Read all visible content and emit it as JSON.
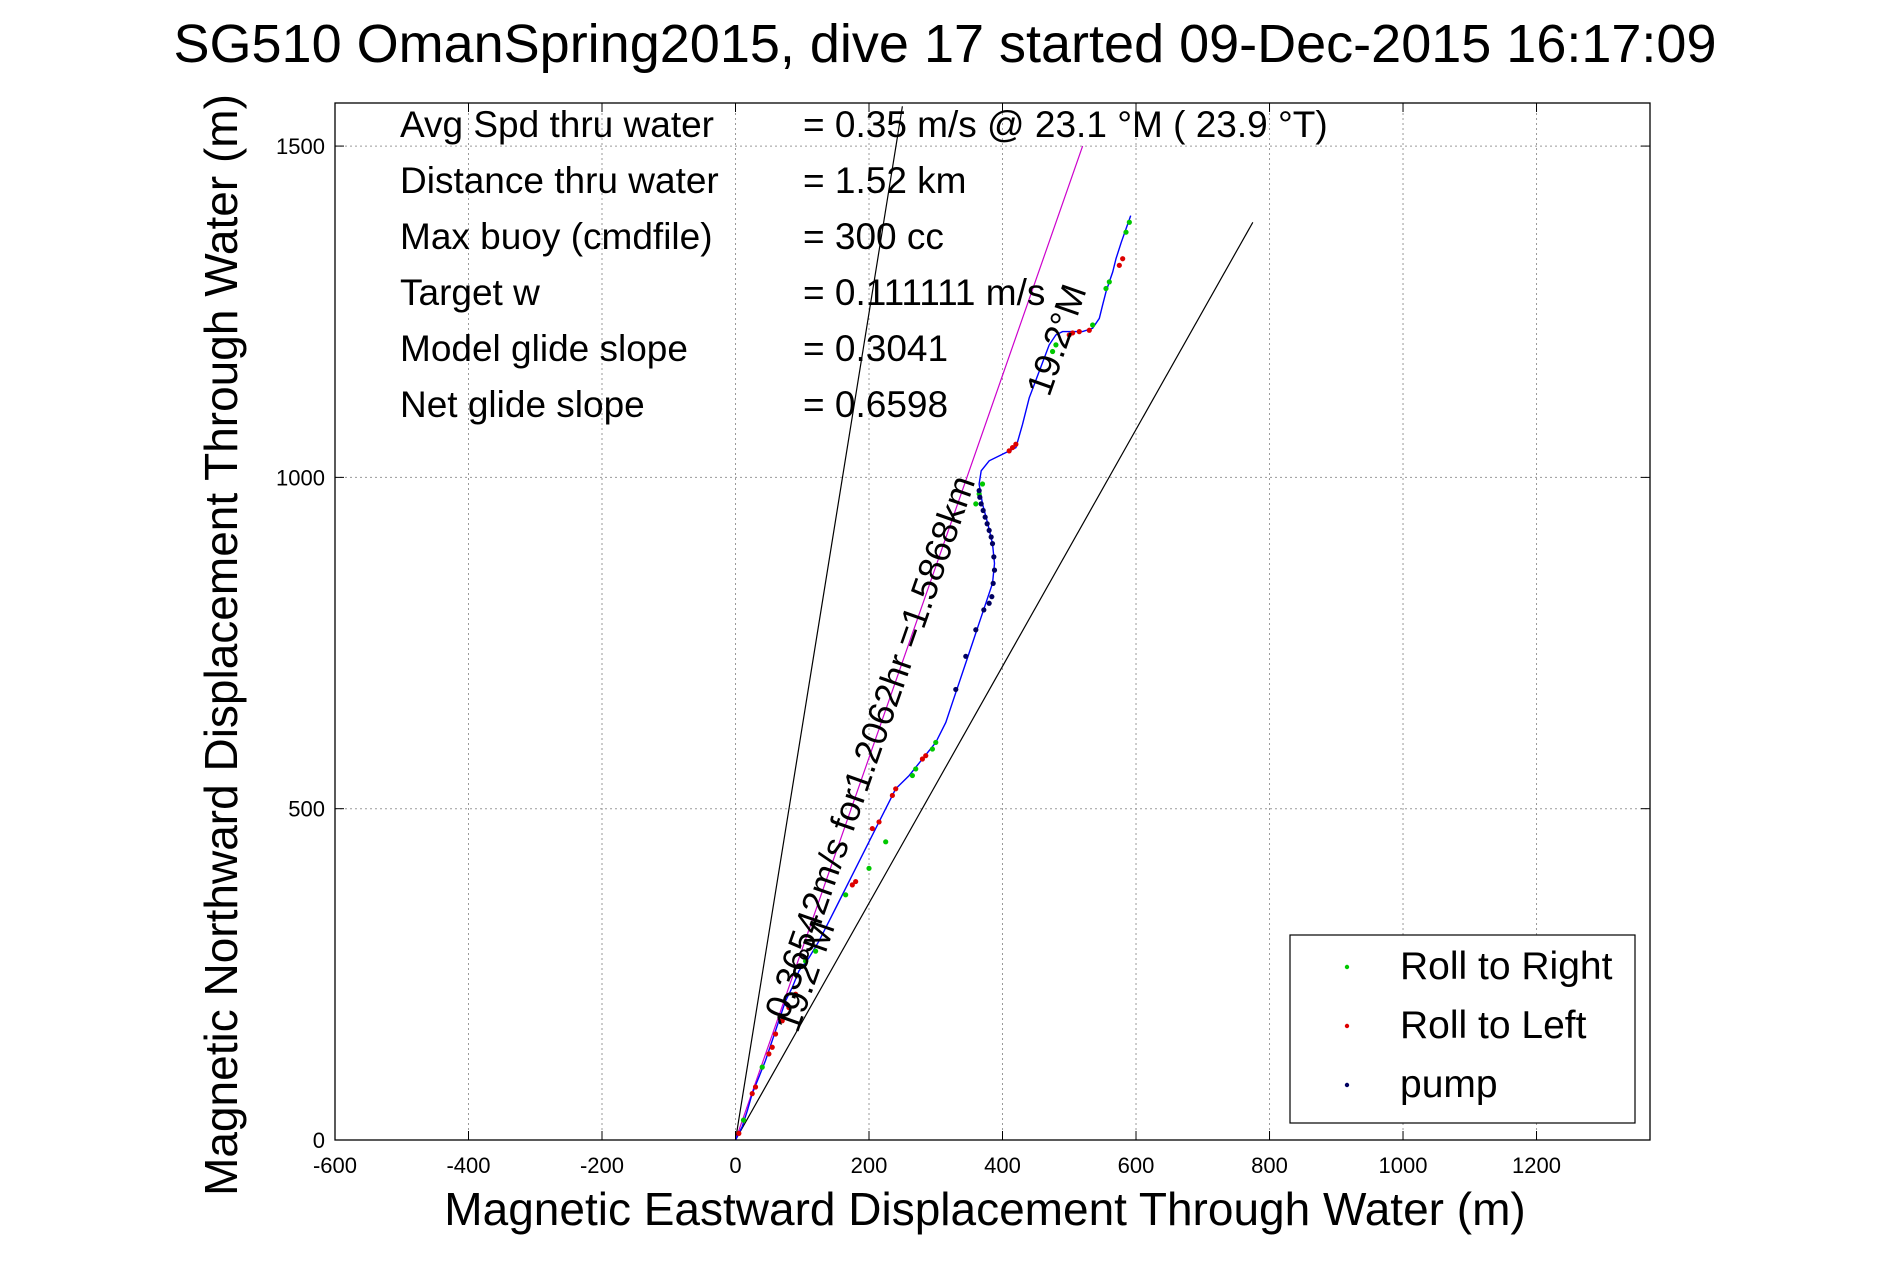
{
  "chart_data": {
    "type": "scatter",
    "title": "SG510 OmanSpring2015, dive 17 started 09-Dec-2015 16:17:09",
    "xlabel": "Magnetic Eastward Displacement Through Water (m)",
    "ylabel": "Magnetic Northward Displacement Through Water (m)",
    "xlim": [
      -600,
      1370
    ],
    "ylim": [
      0,
      1565
    ],
    "xticks": [
      -600,
      -400,
      -200,
      0,
      200,
      400,
      600,
      800,
      1000,
      1200
    ],
    "yticks": [
      0,
      500,
      1000,
      1500
    ],
    "grid": true,
    "legend_position": "bottom-right",
    "info": [
      {
        "label": "Avg Spd thru water",
        "value": "=  0.35 m/s @  23.1 °M ( 23.9 °T)"
      },
      {
        "label": "Distance thru water",
        "value": "=  1.52 km"
      },
      {
        "label": "Max buoy (cmdfile)",
        "value": "= 300 cc"
      },
      {
        "label": "Target w",
        "value": "= 0.111111 m/s"
      },
      {
        "label": "Model glide slope",
        "value": "= 0.3041"
      },
      {
        "label": "Net glide slope",
        "value": "= 0.6598"
      }
    ],
    "annotations": [
      {
        "text": "0.36542m/s for1.2062hr =1.5868km",
        "x": 78,
        "y": 180,
        "angle_deg": 19.2
      },
      {
        "text": "19.2°M",
        "x": 93,
        "y": 160,
        "angle_deg": 19.2
      },
      {
        "text": "19.2°M",
        "x": 470,
        "y": 1120,
        "angle_deg": 19.2
      }
    ],
    "track": {
      "color": "#0000ff",
      "x": [
        0,
        10,
        18,
        25,
        35,
        45,
        55,
        65,
        75,
        85,
        95,
        110,
        125,
        140,
        155,
        170,
        185,
        200,
        215,
        225,
        240,
        260,
        280,
        300,
        315,
        325,
        335,
        345,
        355,
        365,
        375,
        385,
        388,
        385,
        378,
        370,
        365,
        368,
        380,
        400,
        420,
        430,
        440,
        455,
        470,
        480,
        490,
        505,
        520,
        535,
        545,
        550,
        555,
        560,
        565,
        570,
        578,
        585,
        592
      ],
      "y": [
        0,
        20,
        45,
        70,
        95,
        120,
        150,
        180,
        210,
        230,
        255,
        275,
        300,
        330,
        360,
        390,
        420,
        450,
        480,
        500,
        530,
        550,
        575,
        600,
        630,
        660,
        690,
        720,
        750,
        780,
        810,
        840,
        870,
        900,
        930,
        960,
        990,
        1010,
        1025,
        1035,
        1045,
        1080,
        1120,
        1160,
        1200,
        1215,
        1220,
        1220,
        1220,
        1225,
        1240,
        1260,
        1280,
        1295,
        1310,
        1330,
        1355,
        1375,
        1395
      ]
    },
    "series": [
      {
        "name": "Roll to Right",
        "color": "#00c800",
        "x": [
          12,
          40,
          105,
          120,
          165,
          200,
          225,
          265,
          270,
          295,
          300,
          360,
          365,
          370,
          475,
          480,
          535,
          555,
          560,
          585,
          590
        ],
        "y": [
          30,
          110,
          270,
          285,
          370,
          410,
          450,
          550,
          560,
          590,
          600,
          960,
          975,
          990,
          1190,
          1200,
          1230,
          1285,
          1295,
          1370,
          1385
        ]
      },
      {
        "name": "Roll to Left",
        "color": "#dd0000",
        "x": [
          5,
          25,
          30,
          50,
          55,
          60,
          70,
          80,
          90,
          175,
          180,
          205,
          215,
          235,
          240,
          280,
          285,
          410,
          415,
          420,
          500,
          505,
          515,
          530,
          575,
          580
        ],
        "y": [
          10,
          70,
          80,
          130,
          140,
          160,
          180,
          200,
          220,
          385,
          390,
          470,
          480,
          520,
          530,
          575,
          580,
          1040,
          1045,
          1050,
          1215,
          1218,
          1220,
          1222,
          1320,
          1330
        ]
      },
      {
        "name": "pump",
        "color": "#000060",
        "x": [
          330,
          345,
          360,
          372,
          380,
          384,
          386,
          388,
          387,
          385,
          383,
          380,
          377,
          374,
          371,
          368,
          366,
          365
        ],
        "y": [
          680,
          730,
          770,
          800,
          810,
          820,
          840,
          860,
          880,
          900,
          910,
          920,
          930,
          940,
          950,
          960,
          970,
          980
        ]
      }
    ],
    "reference_lines": [
      {
        "x": [
          0,
          250
        ],
        "y": [
          0,
          1560
        ],
        "color": "#000000"
      },
      {
        "x": [
          0,
          775
        ],
        "y": [
          0,
          1385
        ],
        "color": "#000000"
      },
      {
        "x": [
          0,
          520
        ],
        "y": [
          0,
          1500
        ],
        "color": "#cc00cc"
      }
    ]
  }
}
